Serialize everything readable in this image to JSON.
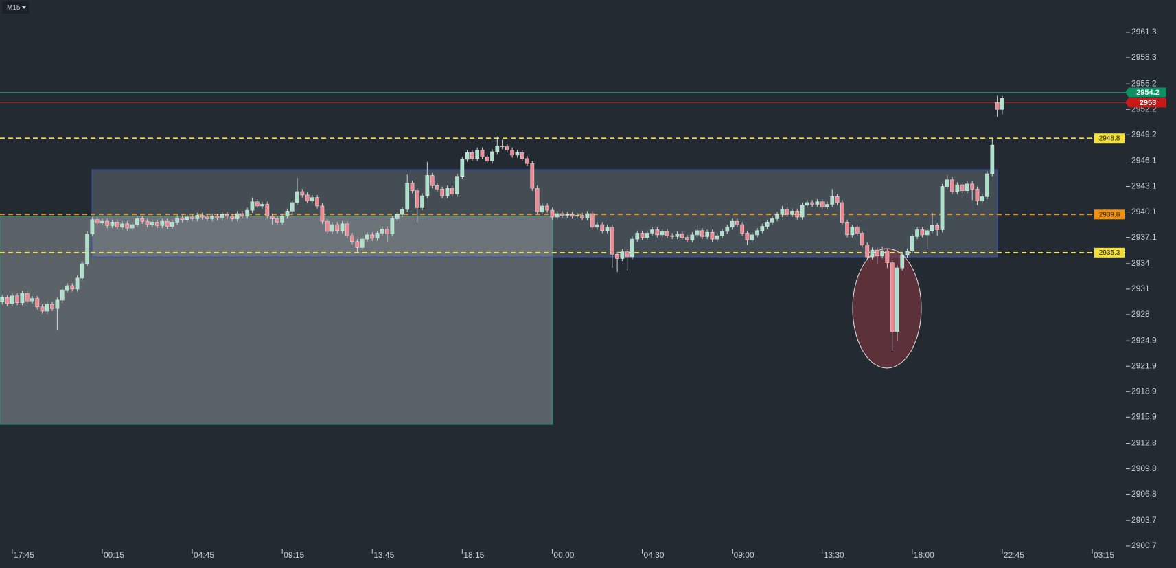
{
  "chart_data": {
    "type": "candlestick",
    "timeframe": "M15",
    "categories": [
      null,
      null,
      "17:45",
      null,
      null,
      null,
      null,
      null,
      null,
      null,
      null,
      null,
      null,
      null,
      null,
      null,
      null,
      null,
      null,
      null,
      "00:15",
      null,
      null,
      null,
      null,
      null,
      null,
      null,
      null,
      null,
      null,
      null,
      null,
      null,
      null,
      null,
      null,
      null,
      "04:45",
      null,
      null,
      null,
      null,
      null,
      null,
      null,
      null,
      null,
      null,
      null,
      null,
      null,
      null,
      null,
      null,
      null,
      "09:15",
      null,
      null,
      null,
      null,
      null,
      null,
      null,
      null,
      null,
      null,
      null,
      null,
      null,
      null,
      null,
      null,
      null,
      "13:45",
      null,
      null,
      null,
      null,
      null,
      null,
      null,
      null,
      null,
      null,
      null,
      null,
      null,
      null,
      null,
      null,
      null,
      "18:15",
      null,
      null,
      null,
      null,
      null,
      null,
      null,
      null,
      null,
      null,
      null,
      null,
      null,
      null,
      null,
      null,
      null,
      "00:00",
      null,
      null,
      null,
      null,
      null,
      null,
      null,
      null,
      null,
      null,
      null,
      null,
      null,
      null,
      null,
      null,
      null,
      "04:30",
      null,
      null,
      null,
      null,
      null,
      null,
      null,
      null,
      null,
      null,
      null,
      null,
      null,
      null,
      null,
      null,
      null,
      "09:00",
      null,
      null,
      null,
      null,
      null,
      null,
      null,
      null,
      null,
      null,
      null,
      null,
      null,
      null,
      null,
      null,
      null,
      "13:30",
      null,
      null,
      null,
      null,
      null,
      null,
      null,
      null,
      null,
      null,
      null,
      null,
      null,
      null,
      null,
      null,
      null,
      "18:00",
      null,
      null,
      null,
      null,
      null,
      null,
      null,
      null,
      null,
      null,
      null,
      null,
      null,
      null,
      null,
      null,
      null,
      "22:45",
      null,
      null,
      null,
      null,
      null,
      null,
      null,
      null,
      null,
      null,
      null,
      null,
      null,
      null,
      null,
      null,
      null,
      "03:15"
    ],
    "open": [
      2929.5,
      2930.0,
      2929.3,
      2930.2,
      2929.4,
      2930.5,
      2929.6,
      2929.9,
      2928.9,
      2928.4,
      2929.2,
      2928.7,
      2929.7,
      2930.9,
      2931.4,
      2931.0,
      2932.3,
      2934.0,
      2937.5,
      2939.2,
      2938.8,
      2939.0,
      2938.5,
      2938.9,
      2938.3,
      2938.7,
      2938.2,
      2938.6,
      2939.3,
      2939.0,
      2938.6,
      2938.9,
      2938.5,
      2939.0,
      2938.4,
      2938.9,
      2939.4,
      2939.2,
      2939.5,
      2939.3,
      2939.7,
      2939.5,
      2939.3,
      2939.6,
      2939.4,
      2939.8,
      2939.6,
      2939.3,
      2939.9,
      2939.6,
      2940.3,
      2941.3,
      2940.8,
      2941.0,
      2939.6,
      2939.3,
      2938.9,
      2939.6,
      2940.2,
      2941.2,
      2942.5,
      2942.1,
      2941.4,
      2941.8,
      2940.8,
      2939.0,
      2937.8,
      2938.6,
      2937.9,
      2938.7,
      2937.3,
      2936.6,
      2935.9,
      2936.9,
      2937.4,
      2937.0,
      2937.6,
      2938.1,
      2937.5,
      2939.3,
      2939.8,
      2940.4,
      2943.5,
      2942.6,
      2940.6,
      2942.0,
      2944.4,
      2943.2,
      2942.8,
      2942.0,
      2942.9,
      2942.2,
      2944.3,
      2946.3,
      2947.1,
      2946.4,
      2947.4,
      2946.6,
      2946.1,
      2947.2,
      2947.9,
      2947.8,
      2947.4,
      2946.8,
      2947.1,
      2946.4,
      2945.8,
      2942.9,
      2940.1,
      2940.8,
      2940.3,
      2939.5,
      2939.9,
      2939.7,
      2939.8,
      2939.6,
      2939.7,
      2939.4,
      2939.9,
      2938.3,
      2938.6,
      2937.9,
      2938.3,
      2935.1,
      2934.6,
      2935.4,
      2934.8,
      2936.9,
      2937.6,
      2937.1,
      2937.6,
      2938.0,
      2937.4,
      2937.8,
      2937.3,
      2937.2,
      2937.5,
      2937.1,
      2936.8,
      2937.4,
      2937.9,
      2937.2,
      2937.7,
      2936.9,
      2937.3,
      2937.8,
      2938.3,
      2939.0,
      2938.6,
      2937.6,
      2936.8,
      2937.4,
      2937.9,
      2938.4,
      2938.9,
      2939.3,
      2939.8,
      2940.4,
      2939.8,
      2940.2,
      2939.5,
      2940.9,
      2941.2,
      2941.0,
      2941.3,
      2940.7,
      2941.0,
      2941.9,
      2941.2,
      2938.9,
      2937.4,
      2938.3,
      2937.6,
      2936.2,
      2934.8,
      2935.6,
      2934.9,
      2935.5,
      2934.1,
      2926.0,
      2933.5,
      2935.0,
      2935.5,
      2937.2,
      2938.0,
      2937.4,
      2937.9,
      2938.5,
      2938.0,
      2943.1,
      2943.9,
      2942.5,
      2943.3,
      2942.6,
      2943.4,
      2942.8,
      2941.4,
      2941.9,
      2944.6,
      2953.0,
      2952.2,
      null,
      null,
      null,
      null,
      null,
      null,
      null,
      null,
      null,
      null,
      null,
      null,
      null,
      null,
      null,
      null,
      null,
      null
    ],
    "high": [
      2930.3,
      2930.3,
      2930.5,
      2930.5,
      2930.8,
      2930.8,
      2930.2,
      2930.2,
      2929.2,
      2929.5,
      2929.5,
      2930.0,
      2931.2,
      2931.7,
      2931.7,
      2932.6,
      2934.3,
      2937.8,
      2939.5,
      2939.5,
      2939.3,
      2939.3,
      2939.2,
      2939.2,
      2939.0,
      2939.0,
      2938.9,
      2939.6,
      2939.6,
      2939.3,
      2939.2,
      2939.2,
      2939.3,
      2939.3,
      2939.2,
      2939.7,
      2939.7,
      2939.8,
      2939.8,
      2940.0,
      2940.0,
      2939.8,
      2939.9,
      2939.9,
      2940.1,
      2940.1,
      2939.9,
      2940.2,
      2940.2,
      2940.6,
      2941.8,
      2941.6,
      2941.3,
      2941.3,
      2939.9,
      2939.6,
      2939.9,
      2940.5,
      2941.5,
      2944.1,
      2942.8,
      2942.4,
      2942.1,
      2942.1,
      2941.1,
      2939.3,
      2938.9,
      2938.9,
      2939.0,
      2939.0,
      2937.6,
      2936.9,
      2937.2,
      2937.7,
      2937.7,
      2937.9,
      2938.4,
      2938.4,
      2939.6,
      2940.1,
      2940.7,
      2944.5,
      2943.8,
      2942.9,
      2942.3,
      2946.0,
      2944.7,
      2943.5,
      2943.1,
      2943.2,
      2943.2,
      2944.6,
      2946.6,
      2947.4,
      2947.4,
      2947.7,
      2947.7,
      2946.9,
      2947.5,
      2949.0,
      2948.6,
      2948.1,
      2947.7,
      2947.4,
      2947.4,
      2946.7,
      2946.1,
      2943.2,
      2941.1,
      2941.1,
      2940.6,
      2940.2,
      2940.2,
      2940.1,
      2940.1,
      2940.0,
      2940.0,
      2940.2,
      2940.2,
      2938.9,
      2938.9,
      2938.6,
      2938.6,
      2935.4,
      2935.7,
      2935.7,
      2937.2,
      2937.9,
      2937.9,
      2937.9,
      2938.3,
      2938.3,
      2938.1,
      2938.1,
      2937.6,
      2937.8,
      2937.8,
      2937.4,
      2937.7,
      2938.5,
      2938.2,
      2938.0,
      2938.0,
      2937.6,
      2938.1,
      2938.6,
      2939.3,
      2939.3,
      2938.9,
      2937.9,
      2937.7,
      2938.2,
      2938.7,
      2939.2,
      2939.6,
      2940.1,
      2940.8,
      2940.7,
      2940.5,
      2940.5,
      2941.2,
      2941.5,
      2941.5,
      2941.6,
      2941.6,
      2941.3,
      2942.8,
      2942.2,
      2941.5,
      2939.2,
      2938.6,
      2938.6,
      2937.9,
      2936.5,
      2935.9,
      2935.9,
      2936.0,
      2935.8,
      2934.4,
      2933.8,
      2935.3,
      2935.8,
      2937.5,
      2938.3,
      2938.3,
      2938.2,
      2940.0,
      2938.8,
      2943.4,
      2944.4,
      2944.2,
      2943.6,
      2943.6,
      2943.7,
      2943.7,
      2943.1,
      2942.2,
      2944.9,
      2948.8,
      2953.8,
      2953.8,
      null,
      null,
      null,
      null,
      null,
      null,
      null,
      null,
      null,
      null,
      null,
      null,
      null,
      null,
      null,
      null,
      null,
      null
    ],
    "low": [
      2929.2,
      2929.0,
      2929.0,
      2929.1,
      2929.1,
      2929.3,
      2929.3,
      2928.6,
      2928.1,
      2928.1,
      2928.4,
      2926.2,
      2929.4,
      2930.6,
      2930.7,
      2930.7,
      2932.0,
      2933.7,
      2937.2,
      2938.5,
      2938.5,
      2938.2,
      2938.2,
      2938.0,
      2938.0,
      2937.9,
      2937.9,
      2938.3,
      2938.7,
      2938.3,
      2938.3,
      2938.2,
      2938.2,
      2938.1,
      2938.1,
      2938.6,
      2938.9,
      2938.9,
      2939.0,
      2939.0,
      2939.2,
      2939.0,
      2939.0,
      2939.1,
      2939.1,
      2939.3,
      2939.0,
      2939.0,
      2939.3,
      2939.3,
      2940.0,
      2940.5,
      2940.5,
      2939.3,
      2938.6,
      2938.6,
      2938.6,
      2939.3,
      2939.9,
      2940.9,
      2941.8,
      2941.1,
      2941.1,
      2940.5,
      2938.7,
      2937.5,
      2937.5,
      2937.6,
      2937.6,
      2937.0,
      2936.3,
      2935.3,
      2935.6,
      2936.6,
      2936.7,
      2936.7,
      2937.3,
      2936.6,
      2937.2,
      2939.0,
      2939.5,
      2940.1,
      2942.3,
      2938.9,
      2940.3,
      2941.7,
      2942.9,
      2942.5,
      2941.7,
      2941.7,
      2941.9,
      2941.9,
      2944.0,
      2946.0,
      2946.1,
      2946.1,
      2946.3,
      2945.8,
      2945.8,
      2946.9,
      2947.5,
      2947.1,
      2946.5,
      2946.5,
      2946.1,
      2945.5,
      2942.6,
      2939.8,
      2939.8,
      2940.0,
      2939.2,
      2939.2,
      2939.4,
      2939.4,
      2939.3,
      2939.3,
      2939.1,
      2939.1,
      2938.0,
      2938.0,
      2937.6,
      2937.6,
      2933.5,
      2933.0,
      2934.3,
      2933.2,
      2934.5,
      2936.6,
      2936.8,
      2936.8,
      2937.3,
      2937.1,
      2937.1,
      2937.0,
      2936.9,
      2936.9,
      2936.8,
      2936.5,
      2936.5,
      2937.1,
      2936.9,
      2936.9,
      2936.6,
      2936.6,
      2937.0,
      2937.5,
      2938.0,
      2938.3,
      2937.3,
      2936.2,
      2936.5,
      2937.1,
      2937.6,
      2938.1,
      2938.6,
      2939.0,
      2939.5,
      2939.5,
      2939.5,
      2939.2,
      2939.2,
      2940.6,
      2940.7,
      2940.7,
      2940.4,
      2940.4,
      2940.7,
      2940.9,
      2938.6,
      2937.1,
      2937.1,
      2937.3,
      2935.9,
      2934.5,
      2934.5,
      2934.0,
      2934.6,
      2933.5,
      2923.7,
      2924.9,
      2933.2,
      2934.7,
      2935.2,
      2936.9,
      2937.1,
      2935.7,
      2937.6,
      2937.3,
      2937.7,
      2942.8,
      2942.2,
      2942.2,
      2942.3,
      2942.3,
      2941.5,
      2940.9,
      2941.1,
      2941.6,
      2944.3,
      2951.3,
      2951.6,
      null,
      null,
      null,
      null,
      null,
      null,
      null,
      null,
      null,
      null,
      null,
      null,
      null,
      null,
      null,
      null,
      null,
      null
    ],
    "close": [
      2930.0,
      2929.3,
      2930.2,
      2929.4,
      2930.5,
      2929.6,
      2929.9,
      2928.9,
      2928.4,
      2929.2,
      2928.7,
      2929.7,
      2930.9,
      2931.4,
      2931.0,
      2932.3,
      2934.0,
      2937.5,
      2939.2,
      2938.8,
      2939.0,
      2938.5,
      2938.9,
      2938.3,
      2938.7,
      2938.2,
      2938.6,
      2939.3,
      2939.0,
      2938.6,
      2938.9,
      2938.5,
      2939.0,
      2938.4,
      2938.9,
      2939.4,
      2939.2,
      2939.5,
      2939.3,
      2939.7,
      2939.5,
      2939.3,
      2939.6,
      2939.4,
      2939.8,
      2939.6,
      2939.3,
      2939.9,
      2939.6,
      2940.3,
      2941.3,
      2940.8,
      2941.0,
      2939.6,
      2939.3,
      2938.9,
      2939.6,
      2940.2,
      2941.2,
      2942.5,
      2942.1,
      2941.4,
      2941.8,
      2940.8,
      2939.0,
      2937.8,
      2938.6,
      2937.9,
      2938.7,
      2937.3,
      2936.6,
      2935.9,
      2936.9,
      2937.4,
      2937.0,
      2937.6,
      2938.1,
      2937.5,
      2939.3,
      2939.8,
      2940.4,
      2943.5,
      2942.6,
      2940.6,
      2942.0,
      2944.4,
      2943.2,
      2942.8,
      2942.0,
      2942.9,
      2942.2,
      2944.3,
      2946.3,
      2947.1,
      2946.4,
      2947.4,
      2946.6,
      2946.1,
      2947.2,
      2947.9,
      2947.8,
      2947.4,
      2946.8,
      2947.1,
      2946.4,
      2945.8,
      2942.9,
      2940.1,
      2940.8,
      2940.3,
      2939.5,
      2939.9,
      2939.7,
      2939.8,
      2939.6,
      2939.7,
      2939.4,
      2939.9,
      2938.3,
      2938.6,
      2937.9,
      2938.3,
      2935.1,
      2934.6,
      2935.4,
      2934.8,
      2936.9,
      2937.6,
      2937.1,
      2937.6,
      2938.0,
      2937.4,
      2937.8,
      2937.3,
      2937.2,
      2937.5,
      2937.1,
      2936.8,
      2937.4,
      2937.9,
      2937.2,
      2937.7,
      2936.9,
      2937.3,
      2937.8,
      2938.3,
      2939.0,
      2938.6,
      2937.6,
      2936.8,
      2937.4,
      2937.9,
      2938.4,
      2938.9,
      2939.3,
      2939.8,
      2940.4,
      2939.8,
      2940.2,
      2939.5,
      2940.9,
      2941.2,
      2941.0,
      2941.3,
      2940.7,
      2941.0,
      2941.9,
      2941.2,
      2938.9,
      2937.4,
      2938.3,
      2937.6,
      2936.2,
      2934.8,
      2935.6,
      2934.9,
      2935.5,
      2934.1,
      2926.0,
      2933.5,
      2935.0,
      2935.5,
      2937.2,
      2938.0,
      2937.4,
      2937.9,
      2938.5,
      2938.0,
      2943.1,
      2943.9,
      2942.5,
      2943.3,
      2942.6,
      2943.4,
      2942.8,
      2941.4,
      2941.9,
      2944.6,
      2948.0,
      2952.2,
      2953.5,
      null,
      null,
      null,
      null,
      null,
      null,
      null,
      null,
      null,
      null,
      null,
      null,
      null,
      null,
      null,
      null,
      null,
      null
    ],
    "bull_color": "#a9e2c8",
    "bear_color": "#ef8791",
    "ylim": [
      2898.1,
      2965.1
    ],
    "yticks": [
      2961.3,
      2958.3,
      2955.2,
      2952.2,
      2949.2,
      2946.1,
      2943.1,
      2940.1,
      2937.1,
      2934.0,
      2931.0,
      2928.0,
      2924.9,
      2921.9,
      2918.9,
      2915.9,
      2912.8,
      2909.8,
      2906.8,
      2903.7,
      2900.7
    ],
    "levels": [
      {
        "value": 2948.8,
        "color": "#f3e03a"
      },
      {
        "value": 2939.8,
        "color": "#f0920f"
      },
      {
        "value": 2935.3,
        "color": "#f3e03a"
      }
    ],
    "price_tags": [
      {
        "value": 2954.2,
        "color": "#0c8f62"
      },
      {
        "value": 2953.0,
        "color": "#c91818"
      }
    ]
  }
}
